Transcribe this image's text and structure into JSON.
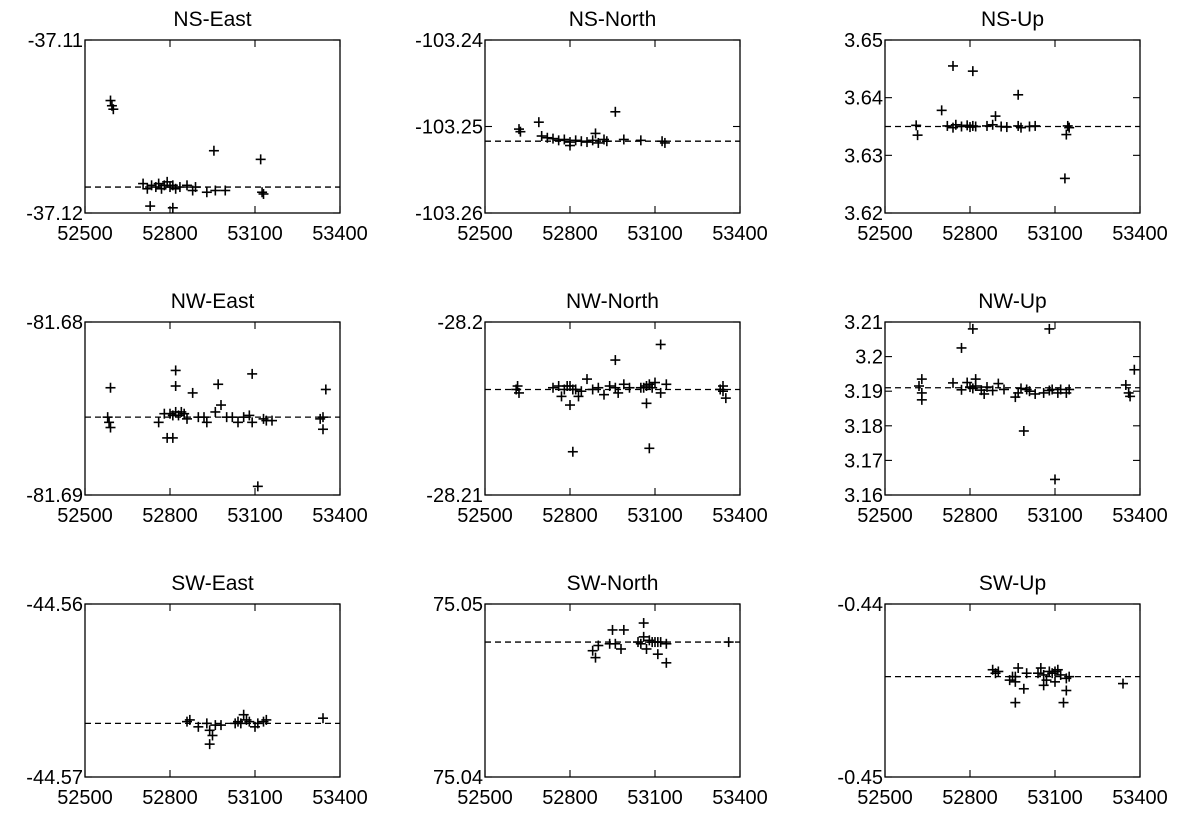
{
  "figure": {
    "x_ticks": [
      "52500",
      "52800",
      "53100",
      "53400"
    ]
  },
  "chart_data": [
    {
      "type": "scatter",
      "title": "NS-East",
      "xlim": [
        52500,
        53400
      ],
      "ylim": [
        -37.12,
        -37.11
      ],
      "y_ticks": [
        "-37.11",
        "-37.12"
      ],
      "ref": -37.1185,
      "points": [
        [
          52590,
          -37.1135
        ],
        [
          52595,
          -37.1138
        ],
        [
          52600,
          -37.114
        ],
        [
          52705,
          -37.1183
        ],
        [
          52720,
          -37.1186
        ],
        [
          52735,
          -37.1184
        ],
        [
          52750,
          -37.1185
        ],
        [
          52760,
          -37.1183
        ],
        [
          52770,
          -37.1186
        ],
        [
          52780,
          -37.1184
        ],
        [
          52790,
          -37.1182
        ],
        [
          52800,
          -37.1185
        ],
        [
          52810,
          -37.1184
        ],
        [
          52820,
          -37.1186
        ],
        [
          52835,
          -37.1185
        ],
        [
          52860,
          -37.1184
        ],
        [
          52880,
          -37.1187
        ],
        [
          52890,
          -37.1185
        ],
        [
          52930,
          -37.1188
        ],
        [
          52960,
          -37.1187
        ],
        [
          52995,
          -37.1187
        ],
        [
          52730,
          -37.1196
        ],
        [
          52810,
          -37.1197
        ],
        [
          52955,
          -37.1164
        ],
        [
          53120,
          -37.1169
        ],
        [
          53125,
          -37.1188
        ],
        [
          53130,
          -37.1189
        ]
      ]
    },
    {
      "type": "scatter",
      "title": "NS-North",
      "xlim": [
        52500,
        53400
      ],
      "ylim": [
        -103.26,
        -103.24
      ],
      "y_ticks": [
        "-103.24",
        "-103.25",
        "-103.26"
      ],
      "ref": -103.2517,
      "points": [
        [
          52620,
          -103.2503
        ],
        [
          52625,
          -103.2506
        ],
        [
          52690,
          -103.2495
        ],
        [
          52700,
          -103.2511
        ],
        [
          52720,
          -103.2513
        ],
        [
          52740,
          -103.2514
        ],
        [
          52760,
          -103.2516
        ],
        [
          52780,
          -103.2515
        ],
        [
          52800,
          -103.2518
        ],
        [
          52800,
          -103.2522
        ],
        [
          52820,
          -103.2516
        ],
        [
          52840,
          -103.2517
        ],
        [
          52860,
          -103.2518
        ],
        [
          52880,
          -103.2516
        ],
        [
          52890,
          -103.2508
        ],
        [
          52900,
          -103.2519
        ],
        [
          52920,
          -103.2515
        ],
        [
          52930,
          -103.2517
        ],
        [
          52960,
          -103.2483
        ],
        [
          52990,
          -103.2515
        ],
        [
          53050,
          -103.2516
        ],
        [
          53125,
          -103.2517
        ],
        [
          53135,
          -103.2519
        ]
      ]
    },
    {
      "type": "scatter",
      "title": "NS-Up",
      "xlim": [
        52500,
        53400
      ],
      "ylim": [
        3.62,
        3.65
      ],
      "y_ticks": [
        "3.65",
        "3.64",
        "3.63",
        "3.62"
      ],
      "ref": 3.635,
      "points": [
        [
          52610,
          3.6352
        ],
        [
          52615,
          3.6335
        ],
        [
          52700,
          3.6378
        ],
        [
          52720,
          3.6351
        ],
        [
          52740,
          3.6348
        ],
        [
          52750,
          3.6353
        ],
        [
          52770,
          3.635
        ],
        [
          52790,
          3.6352
        ],
        [
          52800,
          3.6349
        ],
        [
          52810,
          3.6351
        ],
        [
          52820,
          3.635
        ],
        [
          52860,
          3.6351
        ],
        [
          52880,
          3.6353
        ],
        [
          52890,
          3.6368
        ],
        [
          52910,
          3.635
        ],
        [
          52930,
          3.6349
        ],
        [
          52970,
          3.6351
        ],
        [
          52980,
          3.6348
        ],
        [
          53010,
          3.635
        ],
        [
          53030,
          3.6351
        ],
        [
          52740,
          3.6455
        ],
        [
          52810,
          3.6446
        ],
        [
          52970,
          3.6405
        ],
        [
          53140,
          3.6336
        ],
        [
          53145,
          3.6351
        ],
        [
          53150,
          3.6348
        ],
        [
          53135,
          3.626
        ]
      ]
    },
    {
      "type": "scatter",
      "title": "NW-East",
      "xlim": [
        52500,
        53400
      ],
      "ylim": [
        -81.69,
        -81.68
      ],
      "y_ticks": [
        "-81.68",
        "-81.69"
      ],
      "ref": -81.6855,
      "points": [
        [
          52580,
          -81.6855
        ],
        [
          52585,
          -81.6858
        ],
        [
          52590,
          -81.6838
        ],
        [
          52590,
          -81.6861
        ],
        [
          52760,
          -81.6858
        ],
        [
          52780,
          -81.6853
        ],
        [
          52790,
          -81.6867
        ],
        [
          52800,
          -81.6853
        ],
        [
          52810,
          -81.6854
        ],
        [
          52820,
          -81.6852
        ],
        [
          52830,
          -81.6854
        ],
        [
          52840,
          -81.6852
        ],
        [
          52850,
          -81.6853
        ],
        [
          52860,
          -81.6856
        ],
        [
          52880,
          -81.6841
        ],
        [
          52900,
          -81.6855
        ],
        [
          52920,
          -81.6855
        ],
        [
          52930,
          -81.6858
        ],
        [
          52960,
          -81.6852
        ],
        [
          52970,
          -81.6836
        ],
        [
          52980,
          -81.6848
        ],
        [
          53000,
          -81.6855
        ],
        [
          53020,
          -81.6855
        ],
        [
          53040,
          -81.6858
        ],
        [
          53060,
          -81.6855
        ],
        [
          53080,
          -81.6854
        ],
        [
          53090,
          -81.6858
        ],
        [
          53130,
          -81.6856
        ],
        [
          53140,
          -81.6857
        ],
        [
          53160,
          -81.6857
        ],
        [
          53330,
          -81.6856
        ],
        [
          53340,
          -81.6855
        ],
        [
          53340,
          -81.6862
        ],
        [
          53350,
          -81.6839
        ],
        [
          52810,
          -81.6867
        ],
        [
          52820,
          -81.6828
        ],
        [
          52820,
          -81.6837
        ],
        [
          53090,
          -81.683
        ],
        [
          53110,
          -81.6895
        ]
      ]
    },
    {
      "type": "scatter",
      "title": "NW-North",
      "xlim": [
        52500,
        53400
      ],
      "ylim": [
        -28.21,
        -28.2
      ],
      "y_ticks": [
        "-28.2",
        "-28.21"
      ],
      "ref": -28.2039,
      "points": [
        [
          52610,
          -28.2039
        ],
        [
          52615,
          -28.2037
        ],
        [
          52620,
          -28.2041
        ],
        [
          52740,
          -28.2038
        ],
        [
          52760,
          -28.2037
        ],
        [
          52770,
          -28.2043
        ],
        [
          52780,
          -28.2039
        ],
        [
          52790,
          -28.2037
        ],
        [
          52800,
          -28.2037
        ],
        [
          52810,
          -28.2039
        ],
        [
          52820,
          -28.2039
        ],
        [
          52830,
          -28.2043
        ],
        [
          52840,
          -28.204
        ],
        [
          52860,
          -28.2033
        ],
        [
          52880,
          -28.2039
        ],
        [
          52900,
          -28.2038
        ],
        [
          52920,
          -28.2042
        ],
        [
          52940,
          -28.2037
        ],
        [
          52960,
          -28.2038
        ],
        [
          52970,
          -28.2041
        ],
        [
          52990,
          -28.2036
        ],
        [
          53010,
          -28.2038
        ],
        [
          53050,
          -28.2038
        ],
        [
          53060,
          -28.2038
        ],
        [
          53070,
          -28.2037
        ],
        [
          53080,
          -28.2036
        ],
        [
          53090,
          -28.2038
        ],
        [
          53100,
          -28.2035
        ],
        [
          53120,
          -28.2041
        ],
        [
          53140,
          -28.2036
        ],
        [
          53330,
          -28.2039
        ],
        [
          53340,
          -28.204
        ],
        [
          53340,
          -28.2037
        ],
        [
          53350,
          -28.2044
        ],
        [
          52800,
          -28.2048
        ],
        [
          52960,
          -28.2022
        ],
        [
          53070,
          -28.2047
        ],
        [
          53120,
          -28.2013
        ],
        [
          52810,
          -28.2075
        ],
        [
          53080,
          -28.2073
        ]
      ]
    },
    {
      "type": "scatter",
      "title": "NW-Up",
      "xlim": [
        52500,
        53400
      ],
      "ylim": [
        3.16,
        3.21
      ],
      "y_ticks": [
        "3.21",
        "3.2",
        "3.19",
        "3.18",
        "3.17",
        "3.16"
      ],
      "ref": 3.191,
      "points": [
        [
          52620,
          3.1915
        ],
        [
          52630,
          3.1895
        ],
        [
          52630,
          3.1875
        ],
        [
          52630,
          3.1935
        ],
        [
          52740,
          3.1924
        ],
        [
          52770,
          3.1904
        ],
        [
          52790,
          3.1925
        ],
        [
          52800,
          3.1912
        ],
        [
          52810,
          3.1908
        ],
        [
          52820,
          3.1935
        ],
        [
          52820,
          3.1915
        ],
        [
          52840,
          3.1903
        ],
        [
          52850,
          3.1892
        ],
        [
          52860,
          3.1912
        ],
        [
          52880,
          3.1902
        ],
        [
          52900,
          3.1922
        ],
        [
          52920,
          3.1905
        ],
        [
          52960,
          3.1883
        ],
        [
          52970,
          3.1895
        ],
        [
          52980,
          3.1908
        ],
        [
          53000,
          3.1905
        ],
        [
          53010,
          3.19
        ],
        [
          53030,
          3.1892
        ],
        [
          53060,
          3.1895
        ],
        [
          53080,
          3.1902
        ],
        [
          53090,
          3.1905
        ],
        [
          53110,
          3.1895
        ],
        [
          53120,
          3.1905
        ],
        [
          53140,
          3.1895
        ],
        [
          53150,
          3.1905
        ],
        [
          53350,
          3.1918
        ],
        [
          53360,
          3.1895
        ],
        [
          53365,
          3.1885
        ],
        [
          53380,
          3.1962
        ],
        [
          52770,
          3.2025
        ],
        [
          52810,
          3.208
        ],
        [
          52990,
          3.1785
        ],
        [
          53080,
          3.208
        ],
        [
          53100,
          3.1645
        ]
      ]
    },
    {
      "type": "scatter",
      "title": "SW-East",
      "xlim": [
        52500,
        53400
      ],
      "ylim": [
        -44.57,
        -44.56
      ],
      "y_ticks": [
        "-44.56",
        "-44.57"
      ],
      "ref": -44.5669,
      "points": [
        [
          52860,
          -44.5668
        ],
        [
          52870,
          -44.5667
        ],
        [
          52900,
          -44.5671
        ],
        [
          52930,
          -44.5669
        ],
        [
          52940,
          -44.5673
        ],
        [
          52950,
          -44.5676
        ],
        [
          52960,
          -44.567
        ],
        [
          52980,
          -44.567
        ],
        [
          53030,
          -44.5669
        ],
        [
          53040,
          -44.5668
        ],
        [
          53050,
          -44.5669
        ],
        [
          53060,
          -44.5664
        ],
        [
          53070,
          -44.5667
        ],
        [
          53080,
          -44.5668
        ],
        [
          53100,
          -44.5671
        ],
        [
          53110,
          -44.5669
        ],
        [
          53130,
          -44.5668
        ],
        [
          53140,
          -44.5667
        ],
        [
          53340,
          -44.5666
        ],
        [
          52940,
          -44.5681
        ]
      ]
    },
    {
      "type": "scatter",
      "title": "SW-North",
      "xlim": [
        52500,
        53400
      ],
      "ylim": [
        75.04,
        75.05
      ],
      "y_ticks": [
        "75.05",
        "75.04"
      ],
      "ref": 75.0478,
      "points": [
        [
          52880,
          75.0473
        ],
        [
          52890,
          75.0469
        ],
        [
          52900,
          75.0476
        ],
        [
          52940,
          75.0477
        ],
        [
          52950,
          75.0485
        ],
        [
          52960,
          75.0477
        ],
        [
          52980,
          75.0474
        ],
        [
          52990,
          75.0485
        ],
        [
          53040,
          75.0478
        ],
        [
          53050,
          75.0477
        ],
        [
          53060,
          75.0481
        ],
        [
          53070,
          75.0474
        ],
        [
          53080,
          75.0479
        ],
        [
          53090,
          75.0478
        ],
        [
          53100,
          75.0478
        ],
        [
          53110,
          75.0478
        ],
        [
          53120,
          75.0478
        ],
        [
          53140,
          75.0477
        ],
        [
          53060,
          75.0489
        ],
        [
          53110,
          75.0471
        ],
        [
          53140,
          75.0466
        ],
        [
          53360,
          75.0478
        ]
      ]
    },
    {
      "type": "scatter",
      "title": "SW-Up",
      "xlim": [
        52500,
        53400
      ],
      "ylim": [
        -0.45,
        -0.44
      ],
      "y_ticks": [
        "-0.44",
        "-0.45"
      ],
      "ref": -0.4442,
      "points": [
        [
          52880,
          -0.4438
        ],
        [
          52890,
          -0.444
        ],
        [
          52900,
          -0.4439
        ],
        [
          52940,
          -0.4444
        ],
        [
          52950,
          -0.4442
        ],
        [
          52960,
          -0.4442
        ],
        [
          52960,
          -0.4445
        ],
        [
          52970,
          -0.4437
        ],
        [
          53000,
          -0.444
        ],
        [
          53040,
          -0.444
        ],
        [
          53050,
          -0.4437
        ],
        [
          53060,
          -0.4441
        ],
        [
          53070,
          -0.4444
        ],
        [
          53080,
          -0.4439
        ],
        [
          53090,
          -0.444
        ],
        [
          53100,
          -0.4439
        ],
        [
          53100,
          -0.4445
        ],
        [
          53110,
          -0.4438
        ],
        [
          53120,
          -0.4441
        ],
        [
          53140,
          -0.4443
        ],
        [
          53150,
          -0.4442
        ],
        [
          53340,
          -0.4446
        ],
        [
          52990,
          -0.4449
        ],
        [
          53060,
          -0.4447
        ],
        [
          53140,
          -0.445
        ],
        [
          52960,
          -0.4457
        ],
        [
          53130,
          -0.4457
        ]
      ]
    }
  ]
}
